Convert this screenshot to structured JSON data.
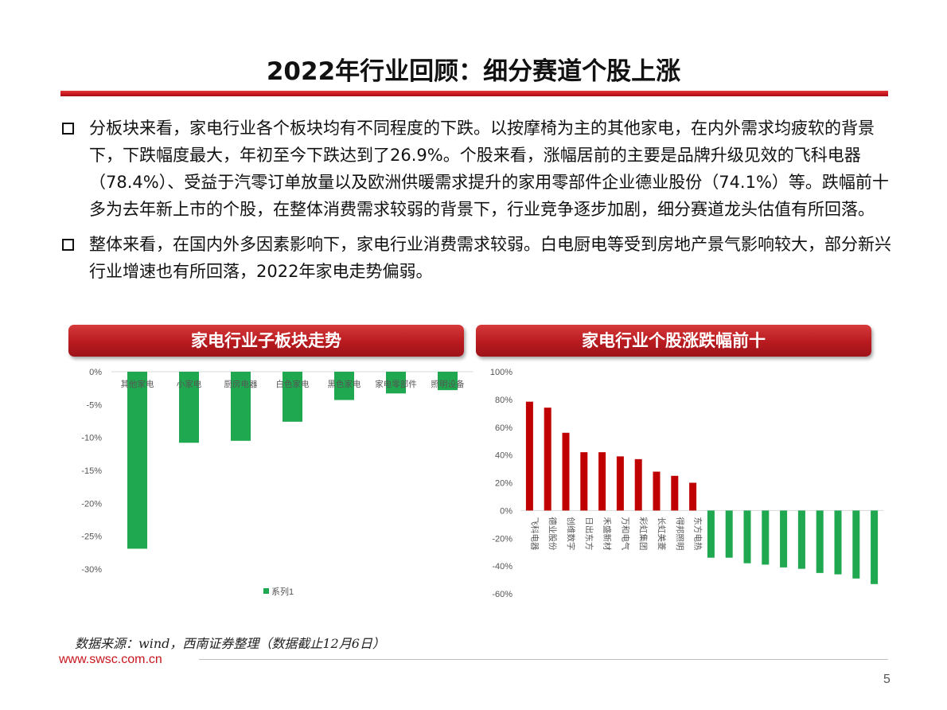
{
  "title": "2022年行业回顾：细分赛道个股上涨",
  "bullets": [
    "分板块来看，家电行业各个板块均有不同程度的下跌。以按摩椅为主的其他家电，在内外需求均疲软的背景下，下跌幅度最大，年初至今下跌达到了26.9%。个股来看，涨幅居前的主要是品牌升级见效的飞科电器（78.4%）、受益于汽零订单放量以及欧洲供暖需求提升的家用零部件企业德业股份（74.1%）等。跌幅前十多为去年新上市的个股，在整体消费需求较弱的背景下，行业竞争逐步加剧，细分赛道龙头估值有所回落。",
    "整体来看，在国内外多因素影响下，家电行业消费需求较弱。白电厨电等受到房地产景气影响较大，部分新兴行业增速也有所回落，2022年家电走势偏弱。"
  ],
  "panels": {
    "left_title": "家电行业子板块走势",
    "right_title": "家电行业个股涨跌幅前十"
  },
  "colors": {
    "accent_red": "#c8161d",
    "bar_green": "#1fa84f",
    "bar_red": "#c00000"
  },
  "chart_data": [
    {
      "type": "bar",
      "title": "",
      "categories": [
        "其他家电",
        "小家电",
        "厨房电器",
        "白色家电",
        "黑色家电",
        "家电零部件",
        "照明设备"
      ],
      "series": [
        {
          "name": "系列1",
          "values": [
            -26.9,
            -10.8,
            -10.5,
            -7.6,
            -4.3,
            -3.3,
            -2.8
          ]
        }
      ],
      "ylim": [
        -30,
        0
      ],
      "yticks": [
        "0%",
        "-5%",
        "-10%",
        "-15%",
        "-20%",
        "-25%",
        "-30%"
      ],
      "legend": "bottom"
    },
    {
      "type": "bar",
      "title": "",
      "categories": [
        "飞科电器",
        "德业股份",
        "创维数字",
        "日出东方",
        "禾盛新材",
        "万和电气",
        "彩虹集团",
        "长虹美菱",
        "得邦照明",
        "东方电热",
        "",
        "",
        "",
        "",
        "",
        "",
        "",
        "",
        "",
        ""
      ],
      "values": [
        78.4,
        74.1,
        56,
        42,
        42,
        39,
        37,
        28,
        25,
        20,
        -34,
        -34,
        -38,
        -39,
        -41,
        -42,
        -45,
        -46,
        -49,
        -53
      ],
      "ylim": [
        -60,
        100
      ],
      "yticks": [
        "100%",
        "80%",
        "60%",
        "40%",
        "20%",
        "0%",
        "-20%",
        "-40%",
        "-60%"
      ],
      "legend": "none"
    }
  ],
  "source_note": "数据来源：wind，西南证券整理（数据截止12月6日）",
  "website": "www.swsc.com.cn",
  "page_number": "5"
}
